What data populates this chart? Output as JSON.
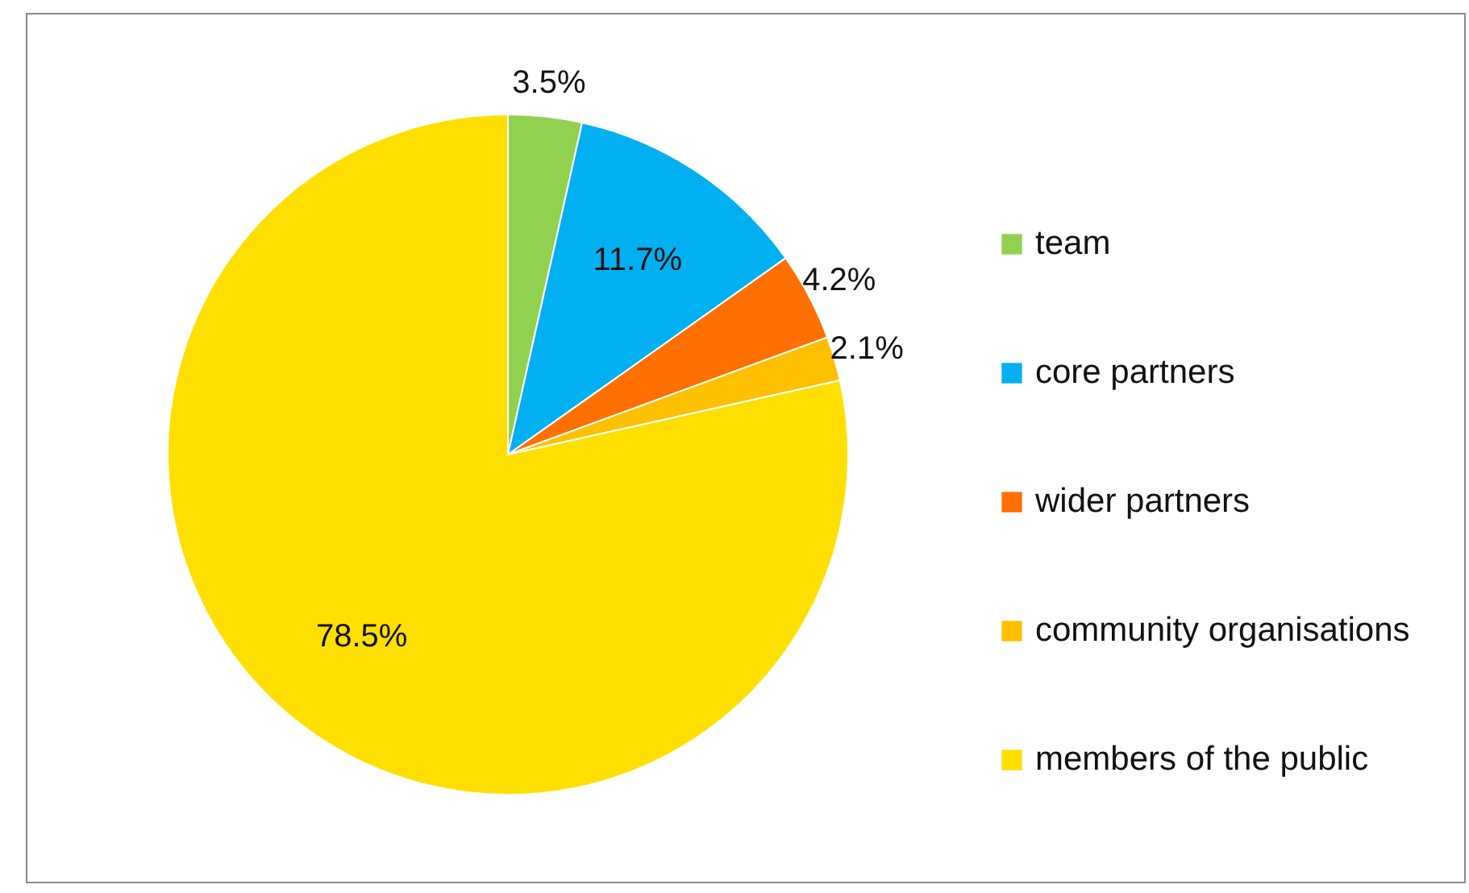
{
  "chart_data": {
    "type": "pie",
    "categories": [
      "team",
      "core partners",
      "wider partners",
      "community organisations",
      "members of the public"
    ],
    "values": [
      3.5,
      11.7,
      4.2,
      2.1,
      78.5
    ],
    "colors": [
      "#92d050",
      "#00b0f0",
      "#ff7000",
      "#ffc000",
      "#ffdf00"
    ],
    "value_labels": [
      "3.5%",
      "11.7%",
      "4.2%",
      "2.1%",
      "78.5%"
    ],
    "legend": "right"
  }
}
